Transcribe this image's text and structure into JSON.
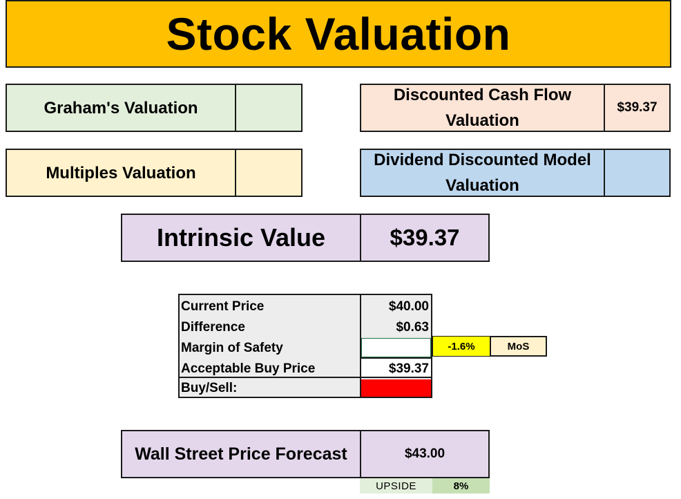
{
  "header": {
    "title": "Stock Valuation"
  },
  "valuations": {
    "graham": {
      "label": "Graham's Valuation",
      "value": ""
    },
    "multiples": {
      "label": "Multiples Valuation",
      "value": ""
    },
    "dcf": {
      "label_line1": "Discounted Cash Flow",
      "label_line2": "Valuation",
      "value": "$39.37"
    },
    "ddm": {
      "label_line1": "Dividend Discounted Model",
      "label_line2": "Valuation",
      "value": ""
    }
  },
  "intrinsic": {
    "label": "Intrinsic Value",
    "value": "$39.37"
  },
  "price_table": {
    "current_price": {
      "label": "Current Price",
      "value": "$40.00"
    },
    "difference": {
      "label": "Difference",
      "value": "$0.63"
    },
    "margin_of_safety": {
      "label": "Margin of Safety",
      "value": "",
      "percent": "-1.6%",
      "tag": "MoS"
    },
    "acceptable_buy_price": {
      "label": "Acceptable Buy Price",
      "value": "$39.37"
    },
    "buy_sell": {
      "label": "Buy/Sell:",
      "signal_color": "#ff0000"
    }
  },
  "forecast": {
    "label": "Wall Street Price Forecast",
    "value": "$43.00",
    "upside_label": "UPSIDE",
    "upside_value": "8%"
  },
  "colors": {
    "title_bg": "#ffc000",
    "graham_bg": "#e2efda",
    "multiples_bg": "#fff2cc",
    "dcf_bg": "#fce4d6",
    "ddm_bg": "#bdd7ee",
    "intrinsic_bg": "#e4d7ec",
    "mos_highlight": "#ffff00",
    "sell_signal": "#ff0000"
  }
}
